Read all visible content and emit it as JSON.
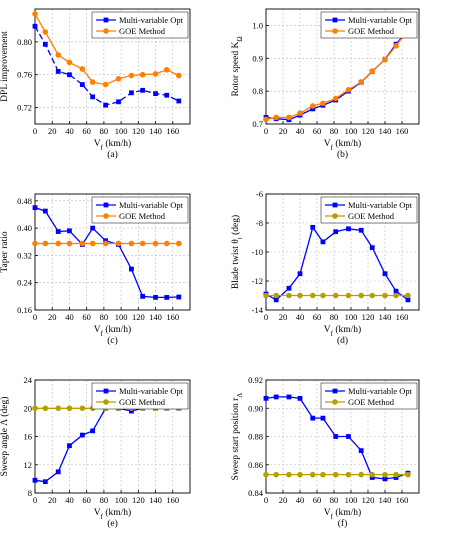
{
  "chart_data": [
    {
      "type": "line",
      "caption": "(a)",
      "xlabel": "V_f (km/h)",
      "ylabel": "DPL improvement",
      "xlim": [
        0,
        180
      ],
      "ylim": [
        0.7,
        0.84
      ],
      "xticks": [
        0,
        20,
        40,
        60,
        80,
        100,
        120,
        140,
        160
      ],
      "yticks": [
        0.72,
        0.76,
        0.8
      ],
      "ytick_labels": [
        "0.72",
        "0.76",
        "0.80"
      ],
      "legend": "top-right",
      "series": [
        {
          "name": "Multi-variable Opt",
          "color": "#0000ff",
          "marker": "square",
          "dash": "6,3",
          "x": [
            0,
            12,
            27,
            40,
            55,
            67,
            82,
            97,
            112,
            125,
            140,
            153,
            167
          ],
          "y": [
            0.819,
            0.797,
            0.764,
            0.76,
            0.748,
            0.733,
            0.723,
            0.727,
            0.738,
            0.741,
            0.737,
            0.735,
            0.728
          ]
        },
        {
          "name": "GOE Method",
          "color": "#ff8000",
          "marker": "circle",
          "x": [
            0,
            12,
            27,
            40,
            55,
            67,
            82,
            97,
            112,
            125,
            140,
            153,
            167
          ],
          "y": [
            0.834,
            0.812,
            0.784,
            0.775,
            0.767,
            0.751,
            0.748,
            0.755,
            0.759,
            0.76,
            0.761,
            0.766,
            0.759
          ]
        }
      ]
    },
    {
      "type": "line",
      "caption": "(b)",
      "xlabel": "V_f (km/h)",
      "ylabel": "Rotor speed K_Ω",
      "xlim": [
        0,
        180
      ],
      "ylim": [
        0.7,
        1.05
      ],
      "xticks": [
        0,
        20,
        40,
        60,
        80,
        100,
        120,
        140,
        160
      ],
      "yticks": [
        0.7,
        0.8,
        0.9,
        1.0
      ],
      "ytick_labels": [
        "0.7",
        "0.8",
        "0.9",
        "1.0"
      ],
      "legend": "top-right",
      "series": [
        {
          "name": "Multi-variable Opt",
          "color": "#0000ff",
          "marker": "square",
          "x": [
            0,
            12,
            27,
            40,
            55,
            67,
            82,
            97,
            112,
            125,
            140,
            153,
            167
          ],
          "y": [
            0.72,
            0.716,
            0.713,
            0.727,
            0.746,
            0.757,
            0.773,
            0.8,
            0.827,
            0.86,
            0.897,
            0.943,
            0.985
          ]
        },
        {
          "name": "GOE Method",
          "color": "#ff8000",
          "marker": "circle",
          "x": [
            0,
            12,
            27,
            40,
            55,
            67,
            82,
            97,
            112,
            125,
            140,
            153,
            167
          ],
          "y": [
            0.714,
            0.72,
            0.72,
            0.733,
            0.755,
            0.763,
            0.778,
            0.804,
            0.828,
            0.861,
            0.896,
            0.938,
            0.985
          ]
        }
      ]
    },
    {
      "type": "line",
      "caption": "(c)",
      "xlabel": "V_f (km/h)",
      "ylabel": "Taper ratio",
      "xlim": [
        0,
        180
      ],
      "ylim": [
        0.16,
        0.5
      ],
      "xticks": [
        0,
        20,
        40,
        60,
        80,
        100,
        120,
        140,
        160
      ],
      "yticks": [
        0.16,
        0.24,
        0.32,
        0.4,
        0.48
      ],
      "ytick_labels": [
        "0.16",
        "0.24",
        "0.32",
        "0.40",
        "0.48"
      ],
      "legend": "top-right",
      "series": [
        {
          "name": "Multi-variable Opt",
          "color": "#0000ff",
          "marker": "square",
          "x": [
            0,
            12,
            27,
            40,
            55,
            67,
            82,
            97,
            112,
            125,
            140,
            153,
            167
          ],
          "y": [
            0.46,
            0.45,
            0.39,
            0.392,
            0.352,
            0.4,
            0.363,
            0.352,
            0.28,
            0.2,
            0.197,
            0.197,
            0.198
          ]
        },
        {
          "name": "GOE Method",
          "color": "#ff8000",
          "marker": "circle",
          "x": [
            0,
            12,
            27,
            40,
            55,
            67,
            82,
            97,
            112,
            125,
            140,
            153,
            167
          ],
          "y": [
            0.355,
            0.355,
            0.355,
            0.355,
            0.355,
            0.355,
            0.355,
            0.355,
            0.355,
            0.355,
            0.355,
            0.355,
            0.355
          ]
        }
      ]
    },
    {
      "type": "line",
      "caption": "(d)",
      "xlabel": "V_f (km/h)",
      "ylabel": "Blade twist θ_t (deg)",
      "xlim": [
        0,
        180
      ],
      "ylim": [
        -14,
        -6
      ],
      "xticks": [
        0,
        20,
        40,
        60,
        80,
        100,
        120,
        140,
        160
      ],
      "yticks": [
        -14,
        -12,
        -10,
        -8,
        -6
      ],
      "ytick_labels": [
        "-14",
        "-12",
        "-10",
        "-8",
        "-6"
      ],
      "legend": "top-right",
      "series": [
        {
          "name": "Multi-variable Opt",
          "color": "#0000ff",
          "marker": "square",
          "x": [
            0,
            12,
            27,
            40,
            55,
            67,
            82,
            97,
            112,
            125,
            140,
            153,
            167
          ],
          "y": [
            -12.9,
            -13.3,
            -12.5,
            -11.5,
            -8.3,
            -9.3,
            -8.6,
            -8.4,
            -8.5,
            -9.7,
            -11.5,
            -12.7,
            -13.3
          ]
        },
        {
          "name": "GOE Method",
          "color": "#b5a000",
          "marker": "circle",
          "x": [
            0,
            12,
            27,
            40,
            55,
            67,
            82,
            97,
            112,
            125,
            140,
            153,
            167
          ],
          "y": [
            -13.0,
            -13.0,
            -13.0,
            -13.0,
            -13.0,
            -13.0,
            -13.0,
            -13.0,
            -13.0,
            -13.0,
            -13.0,
            -13.0,
            -13.0
          ]
        }
      ]
    },
    {
      "type": "line",
      "caption": "(e)",
      "xlabel": "V_f (km/h)",
      "ylabel": "Sweep angle Λ (deg)",
      "xlim": [
        0,
        180
      ],
      "ylim": [
        8,
        24
      ],
      "xticks": [
        0,
        20,
        40,
        60,
        80,
        100,
        120,
        140,
        160
      ],
      "yticks": [
        8,
        12,
        16,
        20,
        24
      ],
      "ytick_labels": [
        "8",
        "12",
        "16",
        "20",
        "24"
      ],
      "legend": "top-right",
      "series": [
        {
          "name": "Multi-variable Opt",
          "color": "#0000ff",
          "marker": "square",
          "x": [
            0,
            12,
            27,
            40,
            55,
            67,
            82,
            97,
            112,
            125,
            140,
            153,
            167
          ],
          "y": [
            9.8,
            9.6,
            11.0,
            14.7,
            16.2,
            16.8,
            20.0,
            20.0,
            19.6,
            20.0,
            20.0,
            20.0,
            20.0
          ]
        },
        {
          "name": "GOE Method",
          "color": "#b5a000",
          "marker": "circle",
          "x": [
            0,
            12,
            27,
            40,
            55,
            67,
            82,
            97,
            112,
            125,
            140,
            153,
            167
          ],
          "y": [
            20.0,
            20.0,
            20.0,
            20.0,
            20.0,
            20.0,
            20.0,
            20.0,
            20.0,
            20.0,
            20.0,
            20.0,
            20.0
          ]
        }
      ]
    },
    {
      "type": "line",
      "caption": "(f)",
      "xlabel": "V_f (km/h)",
      "ylabel": "Sweep start position r_Λ",
      "xlim": [
        0,
        180
      ],
      "ylim": [
        0.84,
        0.92
      ],
      "xticks": [
        0,
        20,
        40,
        60,
        80,
        100,
        120,
        140,
        160
      ],
      "yticks": [
        0.84,
        0.86,
        0.88,
        0.9,
        0.92
      ],
      "ytick_labels": [
        "0.84",
        "0.86",
        "0.88",
        "0.90",
        "0.92"
      ],
      "legend": "top-right",
      "series": [
        {
          "name": "Multi-variable Opt",
          "color": "#0000ff",
          "marker": "square",
          "x": [
            0,
            12,
            27,
            40,
            55,
            67,
            82,
            97,
            112,
            125,
            140,
            153,
            167
          ],
          "y": [
            0.907,
            0.908,
            0.908,
            0.907,
            0.893,
            0.893,
            0.88,
            0.88,
            0.87,
            0.851,
            0.85,
            0.851,
            0.854
          ]
        },
        {
          "name": "GOE Method",
          "color": "#b5a000",
          "marker": "circle",
          "x": [
            0,
            12,
            27,
            40,
            55,
            67,
            82,
            97,
            112,
            125,
            140,
            153,
            167
          ],
          "y": [
            0.853,
            0.853,
            0.853,
            0.853,
            0.853,
            0.853,
            0.853,
            0.853,
            0.853,
            0.853,
            0.853,
            0.853,
            0.853
          ]
        }
      ]
    }
  ]
}
